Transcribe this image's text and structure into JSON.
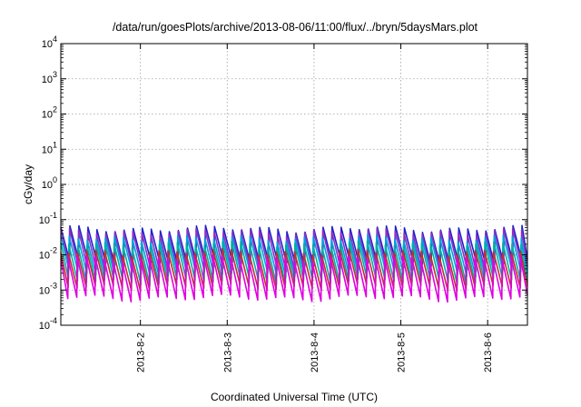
{
  "chart_data": {
    "type": "line",
    "title": "/data/run/goesPlots/archive/2013-08-06/11:00/flux/../bryn/5daysMars.plot",
    "xlabel": "Coordinated Universal Time (UTC)",
    "ylabel": "cGy/day",
    "x_ticks": [
      "2013-8-2",
      "2013-8-3",
      "2013-8-4",
      "2013-8-5",
      "2013-8-6"
    ],
    "xlim": [
      "2013-08-01 02:00",
      "2013-08-06 11:00"
    ],
    "ylim": [
      0.0001,
      10000
    ],
    "yscale": "log",
    "y_ticks": [
      {
        "base": "10",
        "exp": "4"
      },
      {
        "base": "10",
        "exp": "3"
      },
      {
        "base": "10",
        "exp": "2"
      },
      {
        "base": "10",
        "exp": "1"
      },
      {
        "base": "10",
        "exp": "0"
      },
      {
        "base": "10",
        "exp": "-1"
      },
      {
        "base": "10",
        "exp": "-2"
      },
      {
        "base": "10",
        "exp": "-3"
      },
      {
        "base": "10",
        "exp": "-4"
      }
    ],
    "grid": true,
    "legend": "none",
    "sawtooth_period_hours": 2.5,
    "series": [
      {
        "color": "#2020d0",
        "peak": 0.055,
        "trough": 0.006
      },
      {
        "color": "#9030c0",
        "peak": 0.045,
        "trough": 0.004
      },
      {
        "color": "#00a0e0",
        "peak": 0.03,
        "trough": 0.003
      },
      {
        "color": "#00b0a0",
        "peak": 0.02,
        "trough": 0.0018
      },
      {
        "color": "#c03030",
        "peak": 0.012,
        "trough": 0.0012
      },
      {
        "color": "#e000e0",
        "peak": 0.008,
        "trough": 0.0006
      }
    ]
  }
}
